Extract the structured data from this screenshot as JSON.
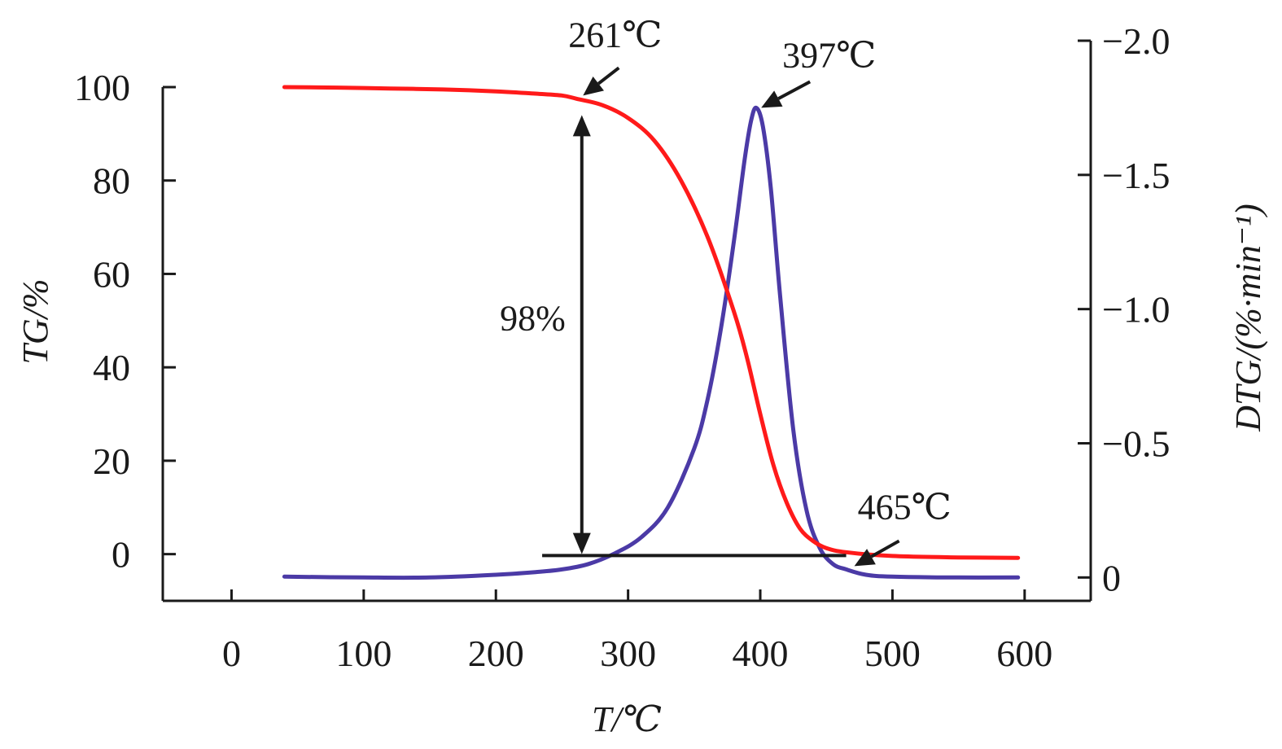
{
  "chart_data": {
    "type": "line",
    "xlabel": "T/℃",
    "ylabel_left": "TG/%",
    "ylabel_right": "DTG/(%·min⁻¹)",
    "x_ticks": [
      0,
      100,
      200,
      300,
      400,
      500,
      600
    ],
    "y_left_ticks": [
      0,
      20,
      40,
      60,
      80,
      100
    ],
    "y_right_ticks": [
      {
        "value": 0,
        "label": "0"
      },
      {
        "value": -0.5,
        "label": "−0.5"
      },
      {
        "value": -1.0,
        "label": "−1.0"
      },
      {
        "value": -1.5,
        "label": "−1.5"
      },
      {
        "value": -2.0,
        "label": "−2.0"
      }
    ],
    "x_range": [
      -52,
      650
    ],
    "y_left_range": [
      -10,
      100
    ],
    "y_right_range": [
      0.087,
      -2.0
    ],
    "grid": false,
    "series": [
      {
        "axis": "left",
        "color": "#ff1a1a",
        "x": [
          40,
          80,
          120,
          160,
          200,
          230,
          250,
          261,
          280,
          300,
          320,
          340,
          360,
          380,
          390,
          400,
          410,
          420,
          430,
          440,
          450,
          465,
          500,
          550,
          595
        ],
        "y": [
          100,
          99.9,
          99.7,
          99.5,
          99.1,
          98.6,
          98.2,
          97.5,
          96.2,
          93.4,
          88.5,
          80.0,
          68.0,
          52.0,
          42.0,
          30.0,
          19.0,
          11.0,
          5.5,
          2.8,
          1.3,
          0.4,
          -0.4,
          -0.7,
          -0.8
        ]
      },
      {
        "axis": "right",
        "color": "#4b3aa6",
        "x": [
          40,
          100,
          150,
          200,
          230,
          250,
          270,
          290,
          310,
          330,
          350,
          360,
          370,
          380,
          388,
          393,
          397,
          402,
          408,
          415,
          425,
          435,
          445,
          455,
          465,
          480,
          500,
          550,
          595
        ],
        "y": [
          -0.003,
          0.0,
          0.0,
          -0.01,
          -0.02,
          -0.03,
          -0.05,
          -0.09,
          -0.15,
          -0.26,
          -0.48,
          -0.66,
          -0.92,
          -1.25,
          -1.55,
          -1.7,
          -1.75,
          -1.68,
          -1.45,
          -1.05,
          -0.55,
          -0.25,
          -0.11,
          -0.05,
          -0.03,
          -0.01,
          -0.003,
          0.0,
          0.0
        ]
      }
    ],
    "annotations": [
      {
        "text": "261℃",
        "x": 261,
        "y": 97.5,
        "axis": "left"
      },
      {
        "text": "397℃",
        "x": 397,
        "y": -1.75,
        "axis": "right"
      },
      {
        "text": "465℃",
        "x": 465,
        "y": -0.03,
        "axis": "right"
      },
      {
        "text": "98%",
        "axis": "left"
      }
    ],
    "mass_loss_arrow": {
      "x": 265,
      "y_top": 97.5,
      "y_bottom": 0
    },
    "baseline": {
      "x_start": 235,
      "x_end": 465,
      "y": -0.3
    }
  }
}
